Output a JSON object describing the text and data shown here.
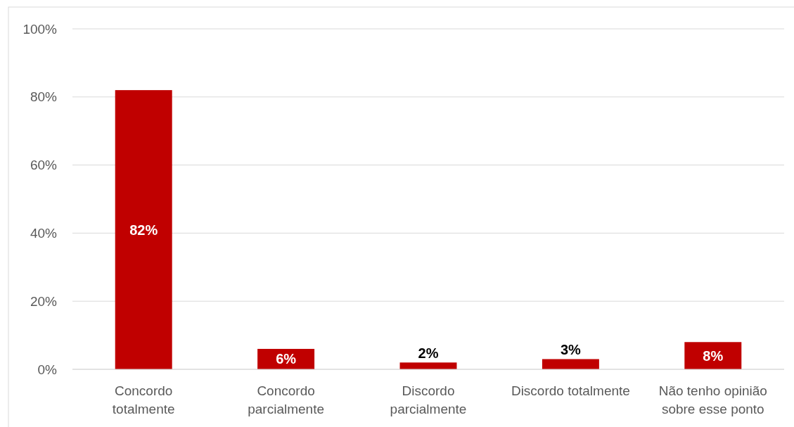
{
  "chart_data": {
    "type": "bar",
    "categories": [
      "Concordo totalmente",
      "Concordo parcialmente",
      "Discordo parcialmente",
      "Discordo totalmente",
      "Não tenho opinião sobre esse ponto"
    ],
    "values": [
      82,
      6,
      2,
      3,
      8
    ],
    "color": "#c00000",
    "ylim": [
      0,
      100
    ],
    "yticks": [
      {
        "value": 0,
        "label": "0%"
      },
      {
        "value": 20,
        "label": "20%"
      },
      {
        "value": 40,
        "label": "40%"
      },
      {
        "value": 60,
        "label": "60%"
      },
      {
        "value": 80,
        "label": "80%"
      },
      {
        "value": 100,
        "label": "100%"
      }
    ],
    "grid": "y",
    "value_labels": [
      "82%",
      "6%",
      "2%",
      "3%",
      "8%"
    ]
  }
}
